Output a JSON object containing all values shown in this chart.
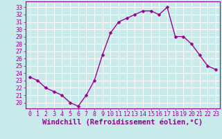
{
  "x": [
    0,
    1,
    2,
    3,
    4,
    5,
    6,
    7,
    8,
    9,
    10,
    11,
    12,
    13,
    14,
    15,
    16,
    17,
    18,
    19,
    20,
    21,
    22,
    23
  ],
  "y": [
    23.5,
    23.0,
    22.0,
    21.5,
    21.0,
    20.0,
    19.5,
    21.0,
    23.0,
    26.5,
    29.5,
    31.0,
    31.5,
    32.0,
    32.5,
    32.5,
    32.0,
    33.0,
    29.0,
    29.0,
    28.0,
    26.5,
    25.0,
    24.5
  ],
  "line_color": "#990099",
  "marker_color": "#990099",
  "bg_color": "#c8eaea",
  "grid_color": "#ffffff",
  "xlabel": "Windchill (Refroidissement éolien,°C)",
  "xlim": [
    -0.5,
    23.5
  ],
  "ylim": [
    19.2,
    33.8
  ],
  "yticks": [
    20,
    21,
    22,
    23,
    24,
    25,
    26,
    27,
    28,
    29,
    30,
    31,
    32,
    33
  ],
  "xticks": [
    0,
    1,
    2,
    3,
    4,
    5,
    6,
    7,
    8,
    9,
    10,
    11,
    12,
    13,
    14,
    15,
    16,
    17,
    18,
    19,
    20,
    21,
    22,
    23
  ],
  "xlabel_color": "#990099",
  "tick_color": "#990099",
  "spine_color": "#990099",
  "axis_label_fontsize": 7.5,
  "tick_fontsize": 6.0,
  "marker_size": 2.5,
  "line_width": 1.0
}
